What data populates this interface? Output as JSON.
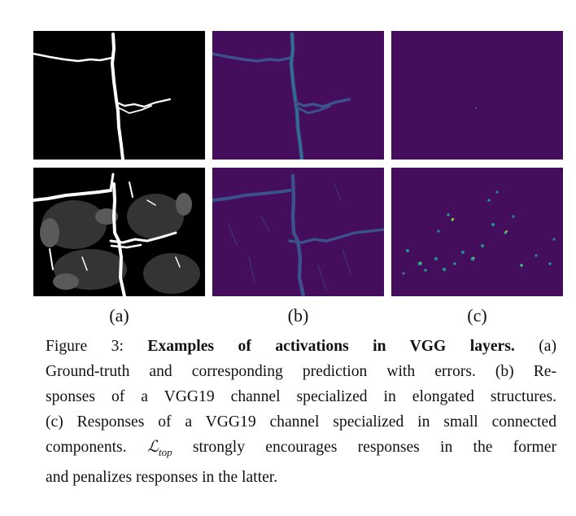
{
  "figure": {
    "panel_labels": [
      "(a)",
      "(b)",
      "(c)"
    ],
    "caption": {
      "prefix": "Figure 3:",
      "title": "Examples of activations in VGG layers.",
      "line1_tail": "(a)",
      "line2": "Ground-truth and corresponding prediction with errors.  (b) Re-",
      "line3": "sponses of a VGG19 channel specialized in elongated structures.",
      "line4": "(c) Responses of a VGG19 channel specialized in small connected",
      "line5_pre": "components.",
      "math_symbol": "ℒ",
      "math_sub": "top",
      "line5_post": "strongly encourages responses in the former",
      "line6": "and penalizes responses in the latter."
    },
    "colors": {
      "background": "#ffffff",
      "panel_black": "#000000",
      "viridis_dark": "#440e5c",
      "viridis_mid": "#3b528b",
      "viridis_teal": "#21918c",
      "viridis_yellow": "#fde725"
    }
  }
}
